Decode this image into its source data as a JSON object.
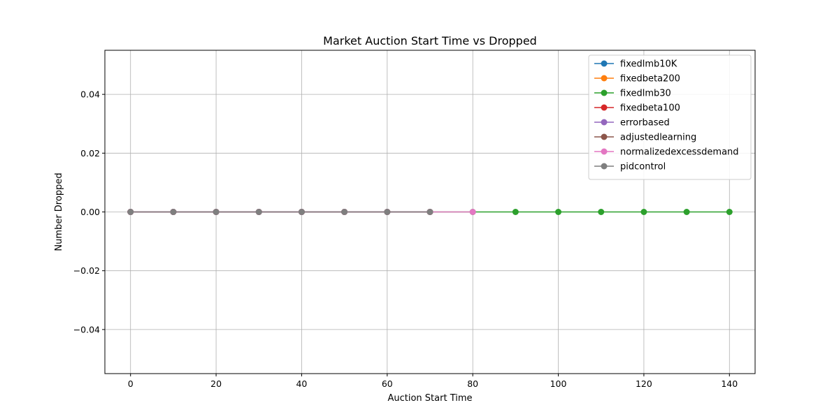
{
  "chart_data": {
    "type": "line",
    "title": "Market Auction Start Time vs Dropped",
    "xlabel": "Auction Start Time",
    "ylabel": "Number Dropped",
    "xlim": [
      -6,
      146
    ],
    "ylim": [
      -0.055,
      0.055
    ],
    "x_ticks": [
      0,
      20,
      40,
      60,
      80,
      100,
      120,
      140
    ],
    "y_ticks": [
      -0.04,
      -0.02,
      0.0,
      0.02,
      0.04
    ],
    "y_tick_labels": [
      "−0.04",
      "−0.02",
      "0.00",
      "0.02",
      "0.04"
    ],
    "grid": true,
    "legend_position": "top-right",
    "series": [
      {
        "name": "fixedlmb10K",
        "color": "#1f77b4",
        "x": [
          0,
          10,
          20,
          30,
          40,
          50,
          60,
          70
        ],
        "y": [
          0,
          0,
          0,
          0,
          0,
          0,
          0,
          0
        ]
      },
      {
        "name": "fixedbeta200",
        "color": "#ff7f0e",
        "x": [
          0,
          10,
          20,
          30,
          40,
          50,
          60,
          70
        ],
        "y": [
          0,
          0,
          0,
          0,
          0,
          0,
          0,
          0
        ]
      },
      {
        "name": "fixedlmb30",
        "color": "#2ca02c",
        "x": [
          0,
          10,
          20,
          30,
          40,
          50,
          60,
          70,
          80,
          90,
          100,
          110,
          120,
          130,
          140
        ],
        "y": [
          0,
          0,
          0,
          0,
          0,
          0,
          0,
          0,
          0,
          0,
          0,
          0,
          0,
          0,
          0
        ]
      },
      {
        "name": "fixedbeta100",
        "color": "#d62728",
        "x": [
          0,
          10,
          20,
          30,
          40,
          50,
          60,
          70
        ],
        "y": [
          0,
          0,
          0,
          0,
          0,
          0,
          0,
          0
        ]
      },
      {
        "name": "errorbased",
        "color": "#9467bd",
        "x": [
          0,
          10,
          20,
          30,
          40,
          50,
          60,
          70
        ],
        "y": [
          0,
          0,
          0,
          0,
          0,
          0,
          0,
          0
        ]
      },
      {
        "name": "adjustedlearning",
        "color": "#8c564b",
        "x": [
          0,
          10,
          20,
          30,
          40,
          50,
          60,
          70
        ],
        "y": [
          0,
          0,
          0,
          0,
          0,
          0,
          0,
          0
        ]
      },
      {
        "name": "normalizedexcessdemand",
        "color": "#e377c2",
        "x": [
          0,
          10,
          20,
          30,
          40,
          50,
          60,
          70,
          80
        ],
        "y": [
          0,
          0,
          0,
          0,
          0,
          0,
          0,
          0,
          0
        ]
      },
      {
        "name": "pidcontrol",
        "color": "#7f7f7f",
        "x": [
          0,
          10,
          20,
          30,
          40,
          50,
          60,
          70
        ],
        "y": [
          0,
          0,
          0,
          0,
          0,
          0,
          0,
          0
        ]
      }
    ]
  }
}
